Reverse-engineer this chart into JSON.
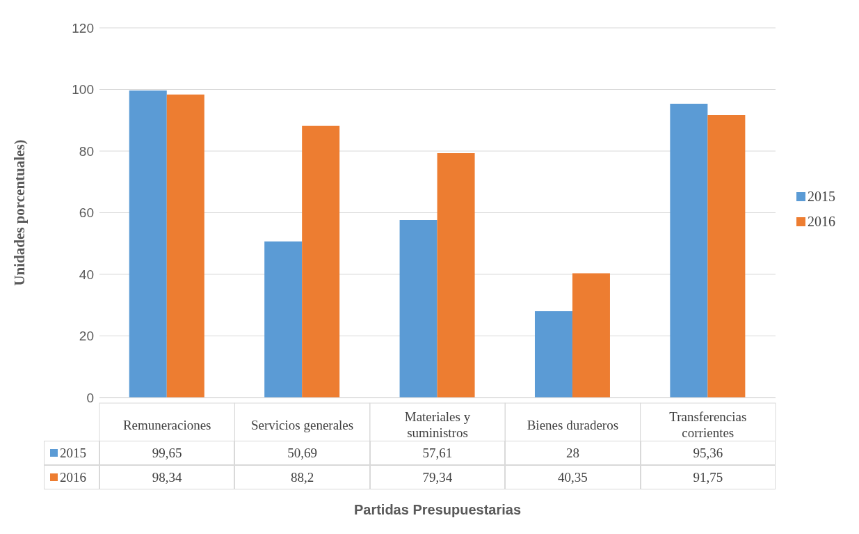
{
  "chart_data": {
    "type": "bar",
    "xlabel": "Partidas Presupuestarias",
    "ylabel": "Unidades porcentuales)",
    "categories": [
      "Remuneraciones",
      "Servicios generales",
      "Materiales y suministros",
      "Bienes duraderos",
      "Transferencias corrientes"
    ],
    "series": [
      {
        "name": "2015",
        "color": "#5b9bd5",
        "values": [
          99.65,
          50.69,
          57.61,
          28,
          95.36
        ],
        "value_labels": [
          "99,65",
          "50,69",
          "57,61",
          "28",
          "95,36"
        ]
      },
      {
        "name": "2016",
        "color": "#ed7d31",
        "values": [
          98.34,
          88.2,
          79.34,
          40.35,
          91.75
        ],
        "value_labels": [
          "98,34",
          "88,2",
          "79,34",
          "40,35",
          "91,75"
        ]
      }
    ],
    "ylim": [
      0,
      120
    ],
    "yticks": [
      0,
      20,
      40,
      60,
      80,
      100,
      120
    ],
    "grid": "y",
    "legend": "right"
  }
}
